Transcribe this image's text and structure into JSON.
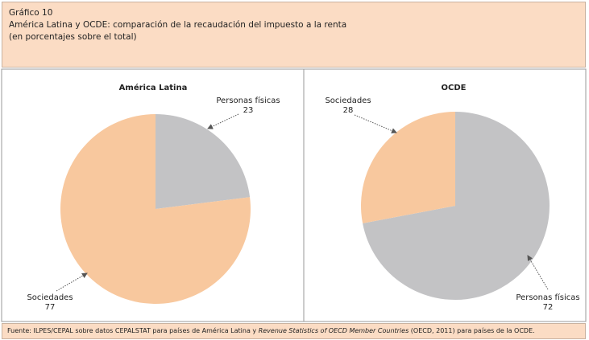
{
  "header": {
    "label": "Gráfico 10",
    "title": "América Latina y OCDE: comparación de la recaudación del impuesto a la renta",
    "subtitle": "(en porcentajes sobre el total)"
  },
  "source": [
    "Fuente: ILPES/CEPAL sobre datos CEPALSTAT para países de América Latina y ",
    "Revenue Statistics of OECD Member Countries",
    " (OECD, 2011) para países de la OCDE."
  ],
  "chart_data": [
    {
      "type": "pie",
      "title": "América Latina",
      "categories": [
        "Personas físicas",
        "Sociedades"
      ],
      "values": [
        23,
        77
      ],
      "colors": [
        "#c3c3c5",
        "#f8c89e"
      ]
    },
    {
      "type": "pie",
      "title": "OCDE",
      "categories": [
        "Personas físicas",
        "Sociedades"
      ],
      "values": [
        72,
        28
      ],
      "colors": [
        "#c3c3c5",
        "#f8c89e"
      ]
    }
  ]
}
